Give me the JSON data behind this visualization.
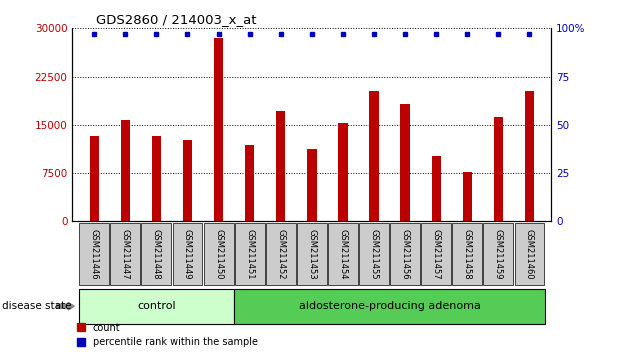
{
  "title": "GDS2860 / 214003_x_at",
  "samples": [
    "GSM211446",
    "GSM211447",
    "GSM211448",
    "GSM211449",
    "GSM211450",
    "GSM211451",
    "GSM211452",
    "GSM211453",
    "GSM211454",
    "GSM211455",
    "GSM211456",
    "GSM211457",
    "GSM211458",
    "GSM211459",
    "GSM211460"
  ],
  "counts": [
    13200,
    15700,
    13200,
    12700,
    28500,
    11800,
    17200,
    11300,
    15200,
    20300,
    18200,
    10200,
    7700,
    16200,
    20300
  ],
  "percentile_values": [
    97,
    97,
    97,
    97,
    97,
    97,
    97,
    97,
    97,
    97,
    97,
    97,
    97,
    97,
    97
  ],
  "bar_color": "#bb0000",
  "percentile_color": "#0000bb",
  "ylim_left": [
    0,
    30000
  ],
  "ylim_right": [
    0,
    100
  ],
  "yticks_left": [
    0,
    7500,
    15000,
    22500,
    30000
  ],
  "ytick_labels_left": [
    "0",
    "7500",
    "15000",
    "22500",
    "30000"
  ],
  "yticks_right": [
    0,
    25,
    50,
    75,
    100
  ],
  "ytick_labels_right": [
    "0",
    "25",
    "50",
    "75",
    "100%"
  ],
  "control_samples": 5,
  "control_label": "control",
  "adenoma_label": "aldosterone-producing adenoma",
  "disease_state_label": "disease state",
  "legend_count_label": "count",
  "legend_percentile_label": "percentile rank within the sample",
  "control_color": "#ccffcc",
  "adenoma_color": "#55cc55",
  "tick_area_color": "#cccccc",
  "bar_width": 0.3
}
